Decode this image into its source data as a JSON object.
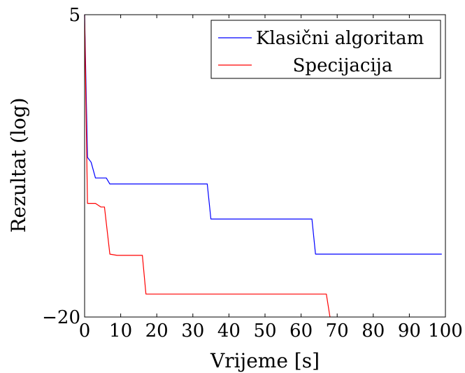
{
  "chart_data": {
    "type": "line",
    "xlabel": "Vrijeme [s]",
    "ylabel": "Rezultat (log)",
    "xlim": [
      0,
      100
    ],
    "ylim": [
      -20,
      5
    ],
    "x_ticks": [
      "0",
      "10",
      "20",
      "30",
      "40",
      "50",
      "60",
      "70",
      "80",
      "90",
      "100"
    ],
    "y_ticks": [
      "5",
      "−20"
    ],
    "grid": false,
    "legend_position": "top-right",
    "series": [
      {
        "name": "Klasični algoritam",
        "color": "#0000ff",
        "x": [
          0,
          0.8,
          1.8,
          3,
          6,
          7,
          34,
          35,
          63,
          64,
          99
        ],
        "y": [
          5,
          -6.8,
          -7.2,
          -8.5,
          -8.5,
          -9,
          -9,
          -11.9,
          -11.9,
          -14.8,
          -14.8
        ]
      },
      {
        "name": "Specijacija",
        "color": "#ff0000",
        "x": [
          0,
          0.8,
          3,
          4.5,
          5.5,
          7,
          9,
          16,
          17,
          67,
          68
        ],
        "y": [
          5,
          -10.6,
          -10.6,
          -10.9,
          -10.9,
          -14.8,
          -14.9,
          -14.9,
          -18.1,
          -18.1,
          -20
        ]
      }
    ]
  }
}
